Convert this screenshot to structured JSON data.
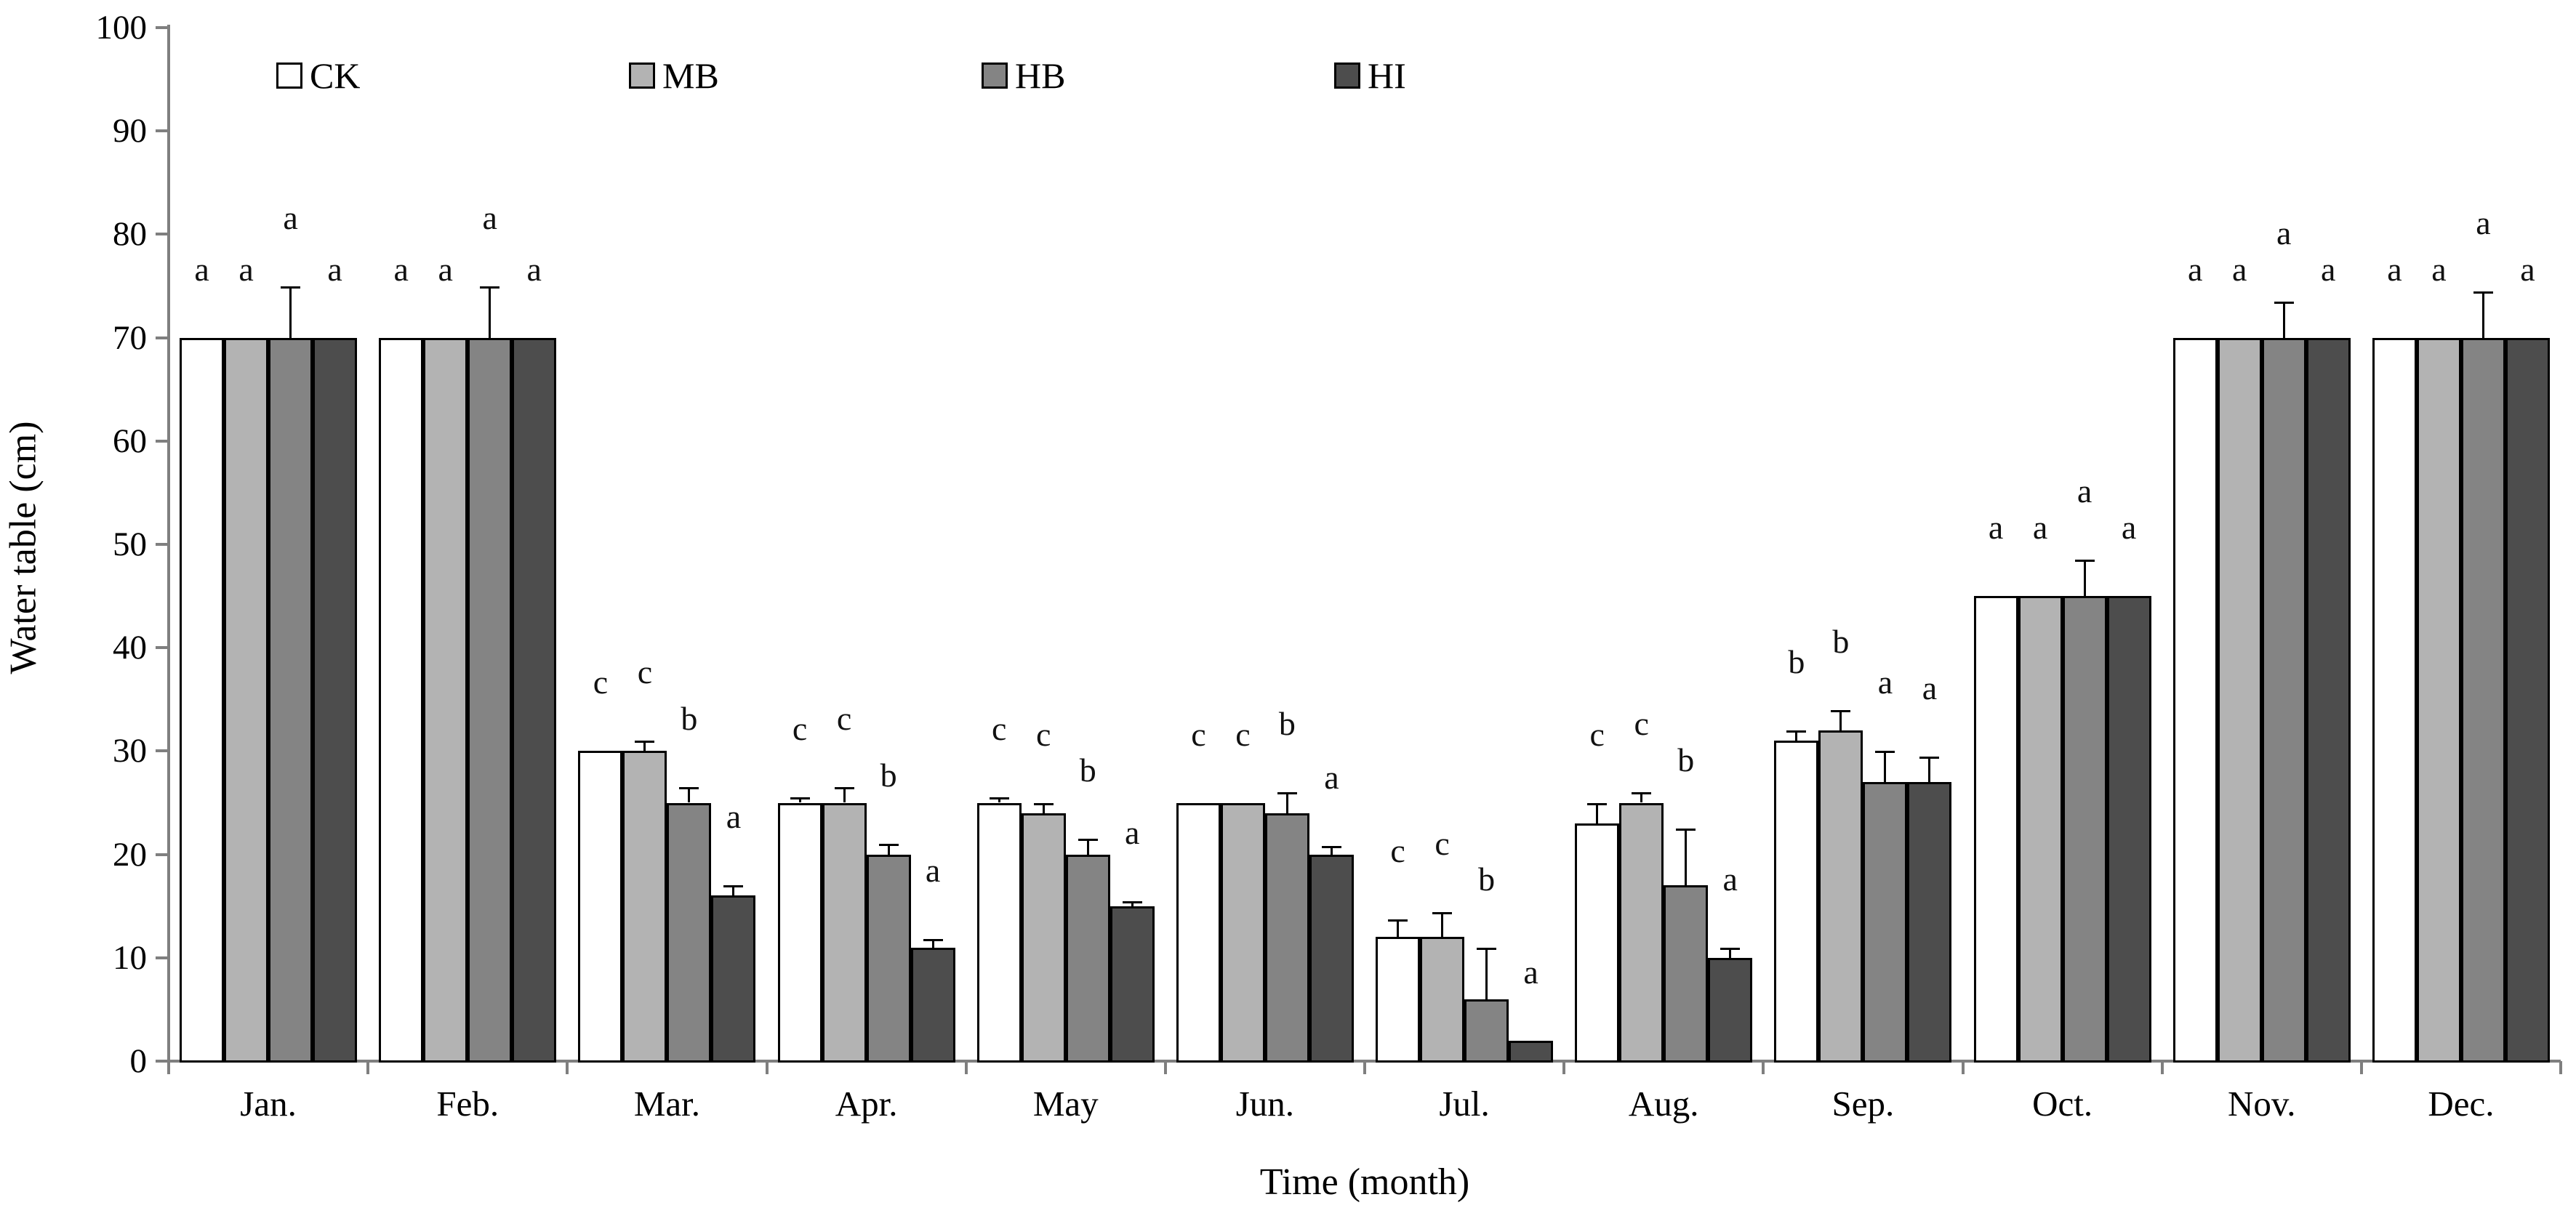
{
  "chart_data": {
    "type": "bar",
    "title": "",
    "xlabel": "Time (month)",
    "ylabel": "Water table (cm)",
    "ylim": [
      0,
      100
    ],
    "ytick_step": 10,
    "yticks": [
      0,
      10,
      20,
      30,
      40,
      50,
      60,
      70,
      80,
      90,
      100
    ],
    "grid": false,
    "legend_position": "top-left-inside",
    "error_bars": "upper-only",
    "categories": [
      "Jan.",
      "Feb.",
      "Mar.",
      "Apr.",
      "May",
      "Jun.",
      "Jul.",
      "Aug.",
      "Sep.",
      "Oct.",
      "Nov.",
      "Dec."
    ],
    "series": [
      {
        "name": "CK",
        "color": "#ffffff",
        "values": [
          70,
          70,
          30,
          25,
          25,
          25,
          12,
          23,
          31,
          45,
          70,
          70
        ],
        "errors": [
          0,
          0,
          0,
          0.5,
          0.5,
          0,
          1.7,
          2,
          1,
          0,
          0,
          0
        ],
        "letters": [
          "a",
          "a",
          "c",
          "c",
          "c",
          "c",
          "c",
          "c",
          "b",
          "a",
          "a",
          "a"
        ]
      },
      {
        "name": "MB",
        "color": "#b3b3b3",
        "values": [
          70,
          70,
          30,
          25,
          24,
          25,
          12,
          25,
          32,
          45,
          70,
          70
        ],
        "errors": [
          0,
          0,
          1,
          1.5,
          1,
          0,
          2.4,
          1,
          2,
          0,
          0,
          0
        ],
        "letters": [
          "a",
          "a",
          "c",
          "c",
          "c",
          "c",
          "c",
          "c",
          "b",
          "a",
          "a",
          "a"
        ]
      },
      {
        "name": "HB",
        "color": "#848484",
        "values": [
          70,
          70,
          25,
          20,
          20,
          24,
          6,
          17,
          27,
          45,
          70,
          70
        ],
        "errors": [
          5,
          5,
          1.5,
          1,
          1.5,
          2,
          5,
          5.5,
          3,
          3.5,
          3.5,
          4.5
        ],
        "letters": [
          "a",
          "a",
          "b",
          "b",
          "b",
          "b",
          "b",
          "b",
          "a",
          "a",
          "a",
          "a"
        ]
      },
      {
        "name": "HI",
        "color": "#4d4d4d",
        "values": [
          70,
          70,
          16,
          11,
          15,
          20,
          2,
          10,
          27,
          45,
          70,
          70
        ],
        "errors": [
          0,
          0,
          1,
          0.8,
          0.5,
          0.8,
          0,
          1,
          2.5,
          0,
          0,
          0
        ],
        "letters": [
          "a",
          "a",
          "a",
          "a",
          "a",
          "a",
          "a",
          "a",
          "a",
          "a",
          "a",
          "a"
        ]
      }
    ]
  }
}
